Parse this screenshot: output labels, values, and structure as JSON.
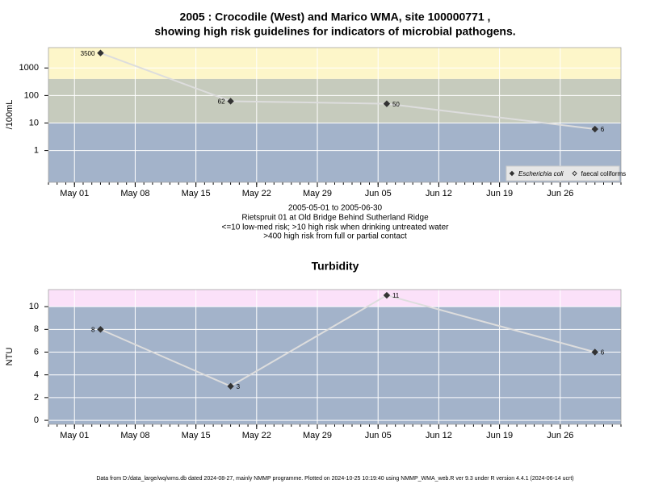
{
  "chart_data": [
    {
      "type": "line",
      "title": [
        "2005 : Crocodile (West) and Marico WMA, site 100000771 ,",
        "showing high risk guidelines for indicators of microbial pathogens."
      ],
      "ylabel": "/100mL",
      "log": true,
      "grid": true,
      "annotations": [
        "2005-05-01 to 2005-06-30",
        "Rietspruit 01 at Old Bridge Behind Sutherland Ridge",
        "<=10 low-med risk; >10 high risk when drinking untreated water",
        ">400 high risk from full or partial contact"
      ],
      "x": [
        "2005-05-04",
        "2005-05-19",
        "2005-06-06",
        "2005-06-30"
      ],
      "xlim": [
        "2005-04-28",
        "2005-07-03"
      ],
      "xticks": [
        {
          "value": "2005-05-01",
          "label": "May 01"
        },
        {
          "value": "2005-05-08",
          "label": "May 08"
        },
        {
          "value": "2005-05-15",
          "label": "May 15"
        },
        {
          "value": "2005-05-22",
          "label": "May 22"
        },
        {
          "value": "2005-05-29",
          "label": "May 29"
        },
        {
          "value": "2005-06-05",
          "label": "Jun 05"
        },
        {
          "value": "2005-06-12",
          "label": "Jun 12"
        },
        {
          "value": "2005-06-19",
          "label": "Jun 19"
        },
        {
          "value": "2005-06-26",
          "label": "Jun 26"
        }
      ],
      "ylim": [
        0.07,
        5500
      ],
      "yticks": [
        1,
        10,
        100,
        1000
      ],
      "thresholds": [
        10,
        400
      ],
      "band_colors": [
        "#a3b3ca",
        "#c6cbbd",
        "#fdf6c9"
      ],
      "legend": "bottom-right",
      "series": [
        {
          "name": "Escherichia coli",
          "color": "#333333",
          "line_color": "#dddddd",
          "marker": "filled",
          "values": [
            3500,
            62,
            50,
            6
          ]
        },
        {
          "name": "faecal coliforms",
          "color": "#333333",
          "line_color": "#dddddd",
          "marker": "open",
          "values": [
            null,
            null,
            null,
            null
          ]
        }
      ]
    },
    {
      "type": "line",
      "title": [
        "Turbidity"
      ],
      "ylabel": "NTU",
      "log": false,
      "grid": true,
      "x": [
        "2005-05-04",
        "2005-05-19",
        "2005-06-06",
        "2005-06-30"
      ],
      "xlim": [
        "2005-04-28",
        "2005-07-03"
      ],
      "xticks": [
        {
          "value": "2005-05-01",
          "label": "May 01"
        },
        {
          "value": "2005-05-08",
          "label": "May 08"
        },
        {
          "value": "2005-05-15",
          "label": "May 15"
        },
        {
          "value": "2005-05-22",
          "label": "May 22"
        },
        {
          "value": "2005-05-29",
          "label": "May 29"
        },
        {
          "value": "2005-06-05",
          "label": "Jun 05"
        },
        {
          "value": "2005-06-12",
          "label": "Jun 12"
        },
        {
          "value": "2005-06-19",
          "label": "Jun 19"
        },
        {
          "value": "2005-06-26",
          "label": "Jun 26"
        }
      ],
      "ylim": [
        -0.35,
        11.5
      ],
      "yticks": [
        0,
        2,
        4,
        6,
        8,
        10
      ],
      "thresholds": [
        10
      ],
      "band_colors": [
        "#a3b3ca",
        "#fbe1f9"
      ],
      "series": [
        {
          "name": "Turbidity",
          "color": "#333333",
          "line_color": "#dddddd",
          "marker": "filled",
          "values": [
            8,
            3,
            11,
            6
          ]
        }
      ]
    }
  ],
  "footer": "Data from D:/data_large/wq/wms.db dated 2024-08-27, mainly NMMP programme. Plotted on 2024-10-25 10:19:40 using NMMP_WMA_web.R ver 9.3 under R version 4.4.1 (2024-06-14 ucrt)"
}
